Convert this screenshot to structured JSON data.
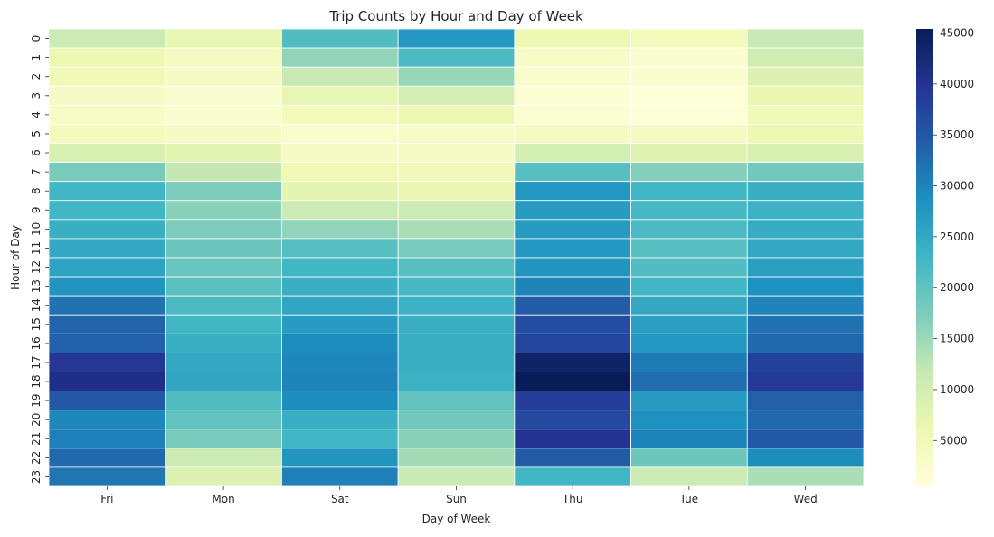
{
  "chart_data": {
    "type": "heatmap",
    "title": "Trip Counts by Hour and Day of Week",
    "xlabel": "Day of Week",
    "ylabel": "Hour of Day",
    "x_categories": [
      "Fri",
      "Mon",
      "Sat",
      "Sun",
      "Thu",
      "Tue",
      "Wed"
    ],
    "y_categories": [
      "0",
      "1",
      "2",
      "3",
      "4",
      "5",
      "6",
      "7",
      "8",
      "9",
      "10",
      "11",
      "12",
      "13",
      "14",
      "15",
      "16",
      "17",
      "18",
      "19",
      "20",
      "21",
      "22",
      "23"
    ],
    "colormap": "YlGnBu",
    "colorbar": {
      "min": 500,
      "max": 45400,
      "ticks": [
        5000,
        10000,
        15000,
        20000,
        25000,
        30000,
        35000,
        40000,
        45000
      ]
    },
    "grid_lines": "white",
    "values": [
      [
        11000,
        7000,
        21500,
        27500,
        6000,
        4500,
        11500
      ],
      [
        6000,
        4000,
        16000,
        22000,
        3000,
        2000,
        10500
      ],
      [
        5000,
        3500,
        11500,
        15500,
        2500,
        2000,
        8500
      ],
      [
        3500,
        2000,
        7000,
        10000,
        1500,
        1000,
        6500
      ],
      [
        3000,
        2000,
        4500,
        6000,
        1500,
        1000,
        5000
      ],
      [
        4500,
        3500,
        2500,
        3000,
        4000,
        4000,
        6000
      ],
      [
        9000,
        7500,
        3500,
        3500,
        10000,
        8000,
        9000
      ],
      [
        18000,
        12000,
        5500,
        5000,
        21000,
        17000,
        18500
      ],
      [
        23000,
        17500,
        7500,
        6500,
        27500,
        23000,
        24000
      ],
      [
        23000,
        16500,
        11000,
        11000,
        27000,
        22500,
        23500
      ],
      [
        24000,
        17500,
        16000,
        14000,
        27000,
        22000,
        24500
      ],
      [
        25000,
        19000,
        21000,
        18000,
        27500,
        21000,
        25000
      ],
      [
        26000,
        19500,
        23000,
        21000,
        28000,
        21500,
        26500
      ],
      [
        28000,
        20500,
        24000,
        22500,
        30000,
        23000,
        28500
      ],
      [
        32000,
        22000,
        25500,
        23500,
        34500,
        25000,
        30000
      ],
      [
        33500,
        23000,
        27000,
        24000,
        36500,
        26500,
        32000
      ],
      [
        34000,
        24000,
        29000,
        24000,
        37500,
        27500,
        33000
      ],
      [
        39500,
        25000,
        29500,
        24000,
        44000,
        31000,
        38000
      ],
      [
        41000,
        25500,
        30000,
        23500,
        45400,
        32500,
        39000
      ],
      [
        35000,
        21500,
        29000,
        20000,
        38500,
        27000,
        34000
      ],
      [
        29500,
        20000,
        24000,
        18500,
        37000,
        28500,
        33000
      ],
      [
        30500,
        18000,
        23000,
        16500,
        40000,
        30000,
        35000
      ],
      [
        33000,
        11000,
        28000,
        14500,
        34500,
        19000,
        29000
      ],
      [
        31500,
        8500,
        30500,
        11500,
        23000,
        11000,
        14000
      ]
    ]
  }
}
